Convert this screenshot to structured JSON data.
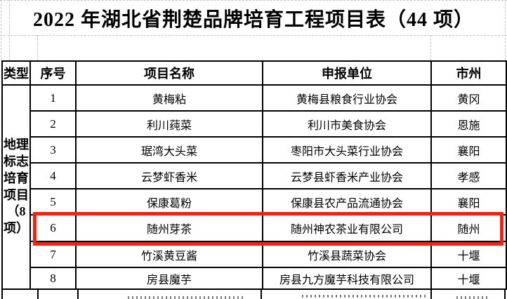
{
  "title": "2022 年湖北省荆楚品牌培育工程项目表（44 项）",
  "table": {
    "headers": [
      "类型",
      "序号",
      "项目名称",
      "申报单位",
      "市州"
    ],
    "category": {
      "label": "地理标志培育项目（8项）",
      "display": "地理\n标志\n培育\n项目\n（8\n项）"
    },
    "rows": [
      {
        "no": "1",
        "name": "黄梅粘",
        "unit": "黄梅县粮食行业协会",
        "city": "黄冈",
        "highlighted": false
      },
      {
        "no": "2",
        "name": "利川莼菜",
        "unit": "利川市美食协会",
        "city": "恩施",
        "highlighted": false
      },
      {
        "no": "3",
        "name": "琚湾大头菜",
        "unit": "枣阳市大头菜行业协会",
        "city": "襄阳",
        "highlighted": false
      },
      {
        "no": "4",
        "name": "云梦虾香米",
        "unit": "云梦县虾香米产业协会",
        "city": "孝感",
        "highlighted": false
      },
      {
        "no": "5",
        "name": "保康葛粉",
        "unit": "保康县农产品流通协会",
        "city": "襄阳",
        "highlighted": false
      },
      {
        "no": "6",
        "name": "随州芽茶",
        "unit": "随州神农茶业有限公司",
        "city": "随州",
        "highlighted": true
      },
      {
        "no": "7",
        "name": "竹溪黄豆酱",
        "unit": "竹溪县蔬菜协会",
        "city": "十堰",
        "highlighted": false
      },
      {
        "no": "8",
        "name": "房县魔芋",
        "unit": "房县九方魔芋科技有限公司",
        "city": "十堰",
        "highlighted": false
      }
    ]
  },
  "highlight": {
    "row_no": "6",
    "color": "#ee2417"
  }
}
